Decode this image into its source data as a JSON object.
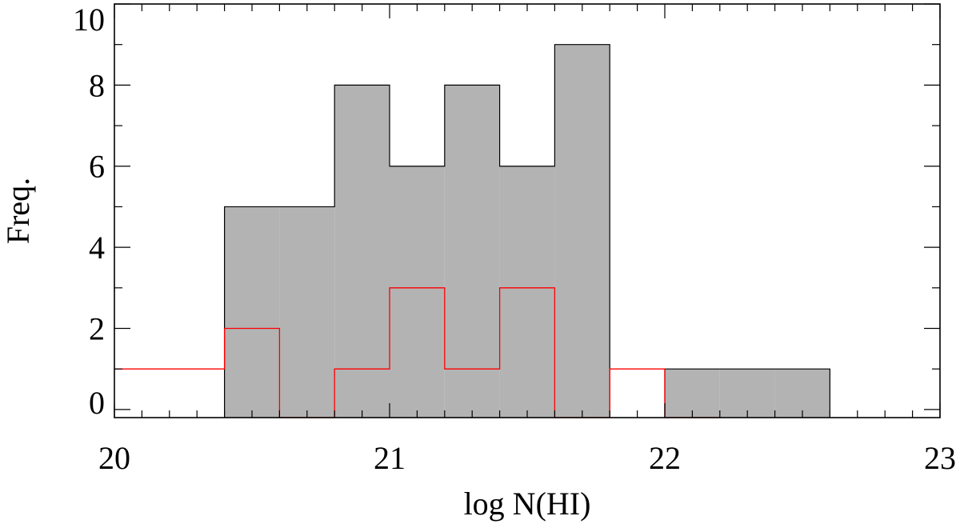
{
  "chart_data": {
    "type": "bar",
    "title": "",
    "xlabel": "log N(HI)",
    "ylabel": "Freq.",
    "xlim": [
      20,
      23
    ],
    "ylim": [
      -0.2,
      10
    ],
    "xticks": [
      20,
      21,
      22,
      23
    ],
    "xtick_labels": [
      "20",
      "21",
      "22",
      "23"
    ],
    "yticks": [
      0,
      2,
      4,
      6,
      8,
      10
    ],
    "ytick_labels": [
      "0",
      "2",
      "4",
      "6",
      "8",
      "10"
    ],
    "bin_width": 0.2,
    "grid": false,
    "series": [
      {
        "style": "filled-histogram",
        "fill_color": "#b3b3b3",
        "line_color": "#000000",
        "bins": [
          {
            "x0": 20.4,
            "x1": 20.6,
            "value": 5
          },
          {
            "x0": 20.6,
            "x1": 20.8,
            "value": 5
          },
          {
            "x0": 20.8,
            "x1": 21.0,
            "value": 8
          },
          {
            "x0": 21.0,
            "x1": 21.2,
            "value": 6
          },
          {
            "x0": 21.2,
            "x1": 21.4,
            "value": 8
          },
          {
            "x0": 21.4,
            "x1": 21.6,
            "value": 6
          },
          {
            "x0": 21.6,
            "x1": 21.8,
            "value": 9
          },
          {
            "x0": 21.8,
            "x1": 22.0,
            "value": 0
          },
          {
            "x0": 22.0,
            "x1": 22.2,
            "value": 1
          },
          {
            "x0": 22.2,
            "x1": 22.4,
            "value": 1
          },
          {
            "x0": 22.4,
            "x1": 22.6,
            "value": 1
          }
        ]
      },
      {
        "style": "step-outline",
        "line_color": "#ff0000",
        "bins": [
          {
            "x0": 20.0,
            "x1": 20.2,
            "value": 1
          },
          {
            "x0": 20.2,
            "x1": 20.4,
            "value": 1
          },
          {
            "x0": 20.4,
            "x1": 20.6,
            "value": 2
          },
          {
            "x0": 20.6,
            "x1": 20.8,
            "value": 0
          },
          {
            "x0": 20.8,
            "x1": 21.0,
            "value": 1
          },
          {
            "x0": 21.0,
            "x1": 21.2,
            "value": 3
          },
          {
            "x0": 21.2,
            "x1": 21.4,
            "value": 1
          },
          {
            "x0": 21.4,
            "x1": 21.6,
            "value": 3
          },
          {
            "x0": 21.6,
            "x1": 21.8,
            "value": 0
          },
          {
            "x0": 21.8,
            "x1": 22.0,
            "value": 1
          },
          {
            "x0": 22.0,
            "x1": 22.2,
            "value": 0
          }
        ]
      }
    ]
  }
}
